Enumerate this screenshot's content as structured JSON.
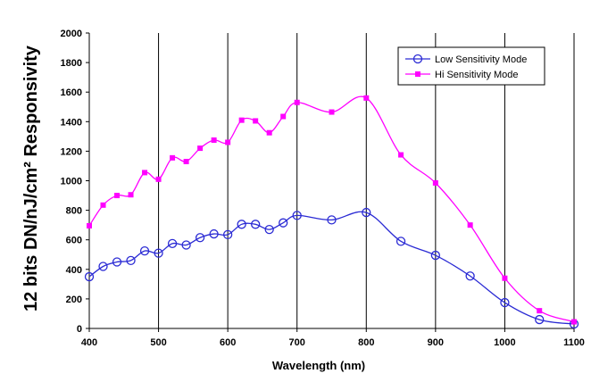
{
  "chart_data": {
    "type": "line",
    "title": "",
    "xlabel": "Wavelength (nm)",
    "ylabel": "12 bits DN/nJ/cm² Responsivity",
    "xlim": [
      400,
      1100
    ],
    "ylim": [
      0,
      2000
    ],
    "xticks": [
      400,
      500,
      600,
      700,
      800,
      900,
      1000,
      1100
    ],
    "yticks": [
      0,
      200,
      400,
      600,
      800,
      1000,
      1200,
      1400,
      1600,
      1800,
      2000
    ],
    "grid": "vertical",
    "legend_position": "top-right",
    "series": [
      {
        "name": "Low Sensitivity Mode",
        "color": "#2a2ad4",
        "marker": "circle",
        "x": [
          400,
          420,
          440,
          460,
          480,
          500,
          520,
          540,
          560,
          580,
          600,
          620,
          640,
          660,
          680,
          700,
          750,
          800,
          850,
          900,
          950,
          1000,
          1050,
          1100
        ],
        "values": [
          350,
          420,
          450,
          460,
          525,
          510,
          575,
          565,
          615,
          640,
          635,
          705,
          705,
          670,
          715,
          765,
          735,
          785,
          590,
          495,
          355,
          175,
          60,
          30
        ]
      },
      {
        "name": "Hi Sensitivity Mode",
        "color": "#ff00ff",
        "marker": "square",
        "x": [
          400,
          420,
          440,
          460,
          480,
          500,
          520,
          540,
          560,
          580,
          600,
          620,
          640,
          660,
          680,
          700,
          750,
          800,
          850,
          900,
          950,
          1000,
          1050,
          1100
        ],
        "values": [
          695,
          835,
          900,
          905,
          1055,
          1010,
          1155,
          1130,
          1220,
          1275,
          1260,
          1410,
          1405,
          1325,
          1435,
          1530,
          1465,
          1560,
          1175,
          985,
          700,
          340,
          120,
          45
        ]
      }
    ]
  }
}
